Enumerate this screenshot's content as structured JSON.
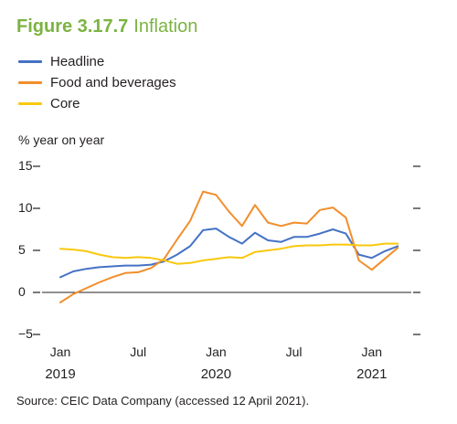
{
  "figure": {
    "number": "Figure 3.17.7",
    "name": "Inflation"
  },
  "source": "Source: CEIC Data Company (accessed 12 April 2021).",
  "chart_data": {
    "type": "line",
    "ylabel": "% year on year",
    "xlabel": "",
    "ylim": [
      -5,
      15
    ],
    "yticks": [
      15,
      10,
      5,
      0,
      -5
    ],
    "yticklabels": [
      "15",
      "10",
      "5",
      "0",
      "−5"
    ],
    "xticks": [
      {
        "month": 0,
        "label": "Jan",
        "year": "2019"
      },
      {
        "month": 6,
        "label": "Jul",
        "year": ""
      },
      {
        "month": 12,
        "label": "Jan",
        "year": "2020"
      },
      {
        "month": 18,
        "label": "Jul",
        "year": ""
      },
      {
        "month": 24,
        "label": "Jan",
        "year": "2021"
      }
    ],
    "x": [
      "2019-01",
      "2019-02",
      "2019-03",
      "2019-04",
      "2019-05",
      "2019-06",
      "2019-07",
      "2019-08",
      "2019-09",
      "2019-10",
      "2019-11",
      "2019-12",
      "2020-01",
      "2020-02",
      "2020-03",
      "2020-04",
      "2020-05",
      "2020-06",
      "2020-07",
      "2020-08",
      "2020-09",
      "2020-10",
      "2020-11",
      "2020-12",
      "2021-01",
      "2021-02",
      "2021-03"
    ],
    "grid": false,
    "zero_line": true,
    "legend_position": "top-left",
    "series": [
      {
        "name": "Headline",
        "color": "#4472c4",
        "values": [
          1.8,
          2.5,
          2.8,
          3.0,
          3.1,
          3.2,
          3.2,
          3.3,
          3.7,
          4.5,
          5.5,
          7.4,
          7.6,
          6.6,
          5.8,
          7.1,
          6.2,
          6.0,
          6.6,
          6.6,
          7.0,
          7.5,
          7.0,
          4.5,
          4.1,
          4.9,
          5.5
        ]
      },
      {
        "name": "Food and beverages",
        "color": "#f28e2b",
        "values": [
          -1.2,
          -0.2,
          0.5,
          1.2,
          1.8,
          2.3,
          2.4,
          2.9,
          4.0,
          6.3,
          8.5,
          12.0,
          11.6,
          9.6,
          7.9,
          10.4,
          8.3,
          7.9,
          8.3,
          8.2,
          9.8,
          10.1,
          8.9,
          3.8,
          2.7,
          4.0,
          5.3
        ]
      },
      {
        "name": "Core",
        "color": "#f9c80e",
        "values": [
          5.2,
          5.1,
          4.9,
          4.5,
          4.2,
          4.1,
          4.2,
          4.1,
          3.8,
          3.4,
          3.5,
          3.8,
          4.0,
          4.2,
          4.1,
          4.8,
          5.0,
          5.2,
          5.5,
          5.6,
          5.6,
          5.7,
          5.7,
          5.6,
          5.6,
          5.8,
          5.8
        ]
      }
    ]
  }
}
